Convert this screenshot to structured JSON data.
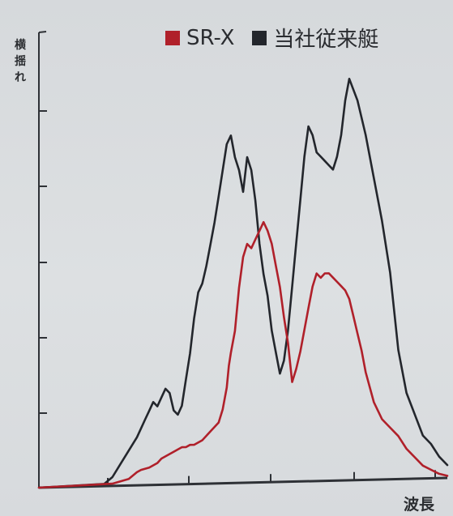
{
  "chart_data": {
    "type": "line",
    "title": "",
    "xlabel": "波長",
    "ylabel": "横揺れ",
    "xlim": [
      0,
      100
    ],
    "ylim": [
      0,
      100
    ],
    "grid": false,
    "legend_position": "top",
    "x_ticks": [
      0,
      20,
      40,
      60,
      80,
      100
    ],
    "y_ticks": [
      0,
      10,
      20,
      30,
      40,
      50,
      60
    ],
    "series": [
      {
        "name": "SR-X",
        "color": "#b0202a",
        "x": [
          0,
          18,
          22,
          24,
          25,
          27,
          29,
          30,
          32,
          33,
          34,
          35,
          36,
          37,
          38,
          40,
          42,
          43,
          44,
          45,
          46,
          46.5,
          47,
          48,
          49,
          50,
          51,
          52,
          53,
          54,
          55,
          56,
          57,
          58,
          59,
          60,
          61,
          62,
          63,
          64,
          65,
          66,
          67,
          68,
          69,
          70,
          71,
          72,
          73,
          74,
          75,
          76,
          77,
          78,
          79,
          80,
          82,
          84,
          86,
          88,
          90,
          92,
          94,
          96,
          98,
          100
        ],
        "y": [
          0,
          0.5,
          1.5,
          3,
          3.5,
          4,
          5,
          6,
          7,
          7.5,
          8,
          8.5,
          8.5,
          9,
          9,
          10,
          12,
          13,
          14,
          17,
          22,
          27,
          30,
          35,
          45,
          52,
          55,
          54,
          56,
          58,
          60,
          58,
          55,
          50,
          45,
          38,
          32,
          23,
          26,
          30,
          35,
          40,
          45,
          48,
          47,
          48,
          48,
          47,
          46,
          45,
          44,
          42,
          38,
          34,
          30,
          25,
          18,
          14,
          12,
          10,
          7,
          5,
          3,
          2,
          1,
          0.5
        ]
      },
      {
        "name": "当社従来艇",
        "color": "#23262c",
        "x": [
          0,
          16,
          18,
          20,
          22,
          24,
          25,
          26,
          27,
          28,
          29,
          30,
          31,
          32,
          33,
          34,
          35,
          36,
          37,
          38,
          39,
          40,
          41,
          42,
          43,
          44,
          45,
          46,
          47,
          48,
          49,
          50,
          51,
          52,
          53,
          54,
          55,
          56,
          57,
          58,
          59,
          60,
          61,
          62,
          63,
          64,
          65,
          66,
          67,
          68,
          69,
          70,
          71,
          72,
          73,
          74,
          75,
          76,
          78,
          80,
          82,
          84,
          86,
          88,
          90,
          92,
          94,
          96,
          98,
          100
        ],
        "y": [
          0,
          0.5,
          2,
          5,
          8,
          11,
          13,
          15,
          17,
          19,
          18,
          20,
          22,
          21,
          17,
          16,
          18,
          24,
          30,
          38,
          44,
          46,
          50,
          55,
          60,
          66,
          72,
          78,
          80,
          75,
          72,
          67,
          75,
          72,
          65,
          55,
          48,
          43,
          35,
          30,
          25,
          28,
          35,
          45,
          55,
          65,
          75,
          82,
          80,
          76,
          75,
          74,
          73,
          72,
          75,
          80,
          88,
          93,
          88,
          80,
          70,
          60,
          48,
          30,
          20,
          15,
          10,
          8,
          5,
          3
        ]
      }
    ]
  }
}
